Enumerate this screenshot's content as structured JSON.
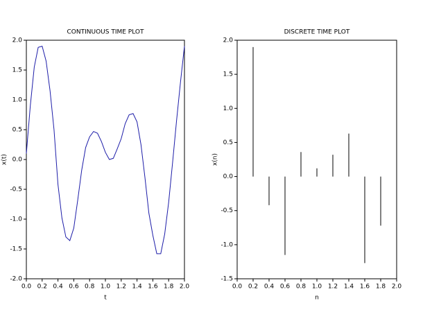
{
  "chart_data": [
    {
      "type": "line",
      "title": "CONTINUOUS TIME PLOT",
      "x_label": "t",
      "y_label": "x(t)",
      "x": [
        0,
        0.05,
        0.1,
        0.15,
        0.2,
        0.25,
        0.3,
        0.35,
        0.4,
        0.45,
        0.5,
        0.55,
        0.6,
        0.65,
        0.7,
        0.75,
        0.8,
        0.85,
        0.9,
        0.95,
        1.0,
        1.05,
        1.1,
        1.15,
        1.2,
        1.25,
        1.3,
        1.35,
        1.4,
        1.45,
        1.5,
        1.55,
        1.6,
        1.65,
        1.7,
        1.75,
        1.8,
        1.85,
        1.9,
        1.95,
        2.0
      ],
      "values": [
        0.1,
        0.9,
        1.55,
        1.88,
        1.9,
        1.65,
        1.15,
        0.5,
        -0.42,
        -0.98,
        -1.3,
        -1.36,
        -1.15,
        -0.68,
        -0.18,
        0.2,
        0.38,
        0.47,
        0.44,
        0.3,
        0.12,
        0.0,
        0.02,
        0.18,
        0.35,
        0.6,
        0.75,
        0.77,
        0.63,
        0.25,
        -0.3,
        -0.9,
        -1.27,
        -1.58,
        -1.58,
        -1.25,
        -0.72,
        -0.05,
        0.65,
        1.3,
        1.9
      ],
      "color": "#1c1ca8",
      "xlim": [
        0,
        2
      ],
      "xticks": [
        {
          "value": 0,
          "label": "0.0"
        },
        0.2,
        0.4,
        0.6,
        0.8,
        {
          "value": 1,
          "label": "1.0"
        },
        1.2,
        1.4,
        1.6,
        1.8,
        {
          "value": 2,
          "label": "2.0"
        }
      ],
      "ylim": [
        -2,
        2
      ],
      "yticks": [
        {
          "value": -2,
          "label": "-2.0"
        },
        -1.5,
        {
          "value": -1,
          "label": "-1.0"
        },
        -0.5,
        {
          "value": 0,
          "label": "0.0"
        },
        0.5,
        {
          "value": 1,
          "label": "1.0"
        },
        1.5,
        {
          "value": 2,
          "label": "2.0"
        }
      ]
    },
    {
      "type": "stem",
      "title": "DISCRETE TIME PLOT",
      "x_label": "n",
      "y_label": "x(n)",
      "x": [
        0.2,
        0.4,
        0.6,
        0.8,
        1.0,
        1.2,
        1.4,
        1.6,
        1.8,
        2.0
      ],
      "values": [
        1.9,
        -0.42,
        -1.15,
        0.36,
        0.12,
        0.32,
        0.63,
        -1.27,
        -0.72,
        1.9
      ],
      "color": "#000000",
      "xlim": [
        0,
        2
      ],
      "xticks": [
        {
          "value": 0,
          "label": "0.0"
        },
        0.2,
        0.4,
        0.6,
        0.8,
        {
          "value": 1,
          "label": "1.0"
        },
        1.2,
        1.4,
        1.6,
        1.8,
        {
          "value": 2,
          "label": "2.0"
        }
      ],
      "ylim": [
        -1.5,
        2
      ],
      "yticks": [
        -1.5,
        {
          "value": -1,
          "label": "-1.0"
        },
        -0.5,
        {
          "value": 0,
          "label": "0.0"
        },
        0.5,
        {
          "value": 1,
          "label": "1.0"
        },
        1.5,
        {
          "value": 2,
          "label": "2.0"
        }
      ]
    }
  ]
}
